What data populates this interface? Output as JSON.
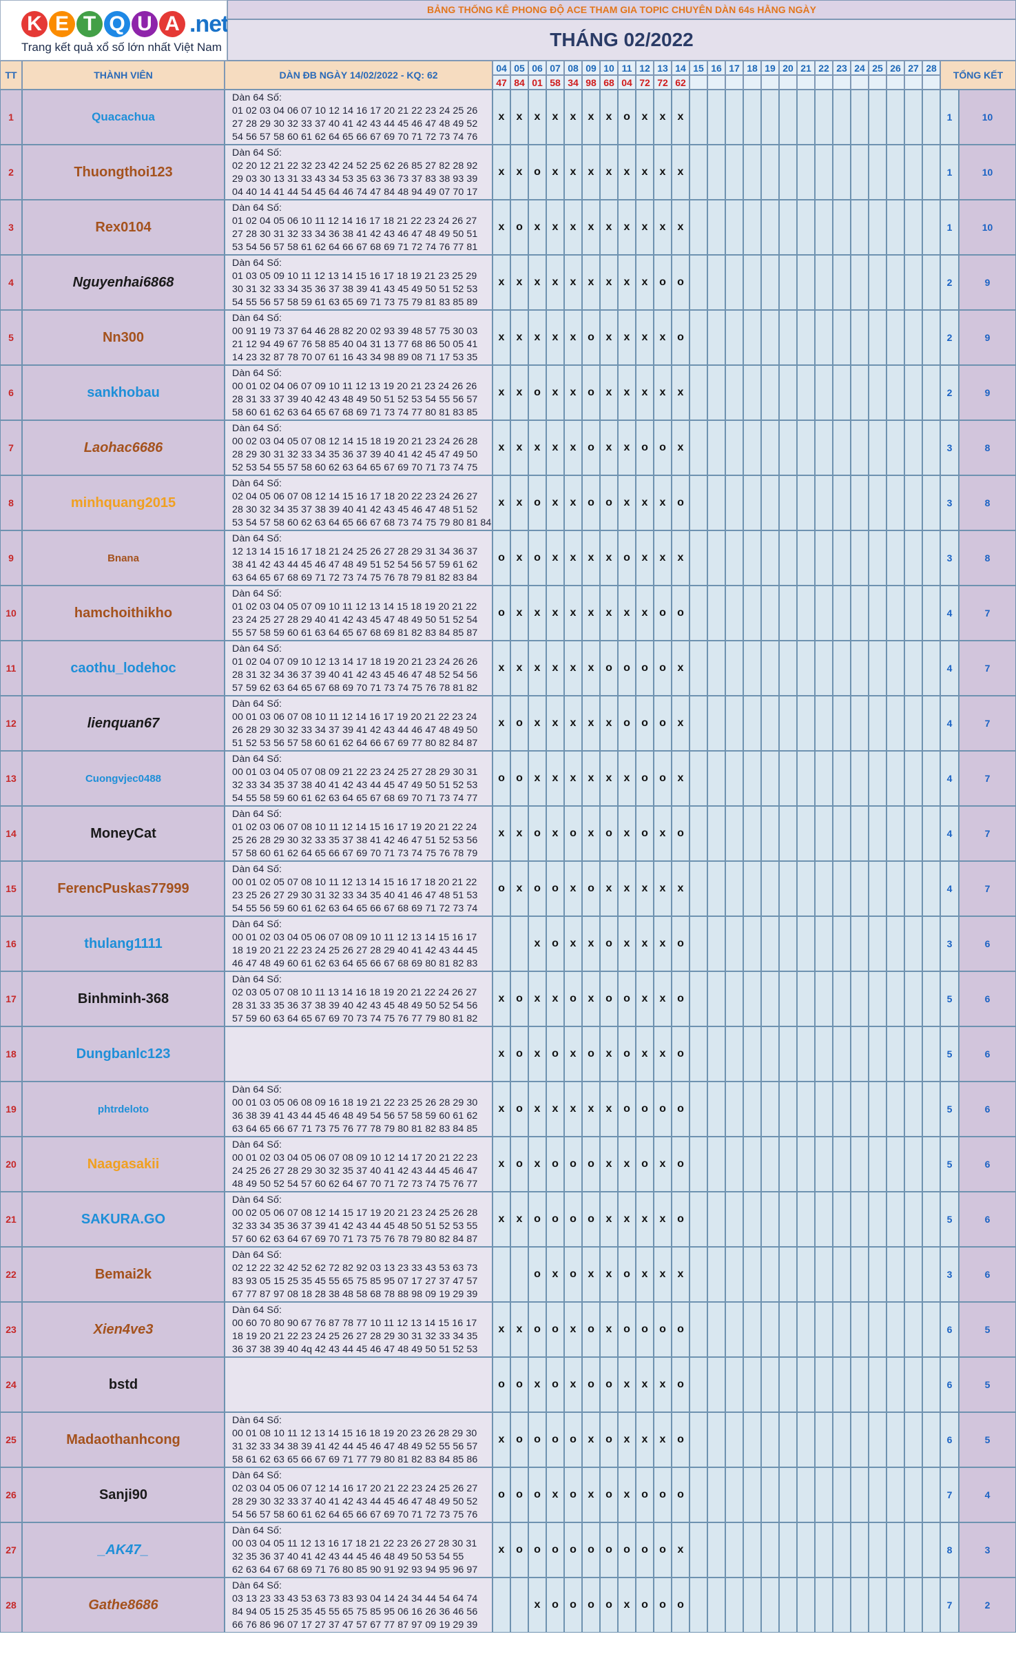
{
  "logo": {
    "letters": [
      "K",
      "E",
      "T",
      "Q",
      "U",
      "A"
    ],
    "suffix": ".net",
    "tagline": "Trang kết quả xổ số lớn nhất Việt Nam"
  },
  "banner": "BẢNG THỐNG KÊ PHONG ĐỘ ACE THAM GIA TOPIC CHUYÊN DÀN 64s HẰNG NGÀY",
  "month": "THÁNG 02/2022",
  "headers": {
    "tt": "TT",
    "member": "THÀNH VIÊN",
    "dan": "DÀN ĐB NGÀY 14/02/2022 - KQ: 62",
    "total": "TỔNG KẾT"
  },
  "days": [
    "04",
    "05",
    "06",
    "07",
    "08",
    "09",
    "10",
    "11",
    "12",
    "13",
    "14",
    "15",
    "16",
    "17",
    "18",
    "19",
    "20",
    "21",
    "22",
    "23",
    "24",
    "25",
    "26",
    "27",
    "28"
  ],
  "results": [
    "47",
    "84",
    "01",
    "58",
    "34",
    "98",
    "68",
    "04",
    "72",
    "72",
    "62"
  ],
  "dan_title": "Dàn 64 Số:",
  "rows": [
    {
      "tt": "1",
      "name": "Quacachua",
      "color": "#1e8fd8",
      "style": "normal",
      "size": 17,
      "dan": [
        "01 02 03 04 06 07 10 12 14 16 17 20 21 22 23 24 25 26",
        "27 28 29 30 32 33 37 40 41 42 43 44 45 46 47 48 49 52",
        "54 56 57 58 60 61 62 64 65 66 67 69 70 71 72 73 74 76",
        "77 78 79 82 84 85 87 94 96 97"
      ],
      "marks": [
        "x",
        "x",
        "x",
        "x",
        "x",
        "x",
        "x",
        "o",
        "x",
        "x",
        "x"
      ],
      "a": "1",
      "b": "10"
    },
    {
      "tt": "2",
      "name": "Thuongthoi123",
      "color": "#a4521d",
      "style": "normal",
      "size": 20,
      "dan": [
        "02 20 12 21 22 32 23 42 24 52 25 62 26 85 27 82 28 92",
        "29 03 30 13 31 33 43 34 53 35 63 36 73 37 83 38 93 39",
        "04 40 14 41 44 54 45 64 46 74 47 84 48 94 49 07 70 17",
        "71 57 75 67 76 77 87 78 97 79"
      ],
      "marks": [
        "x",
        "x",
        "o",
        "x",
        "x",
        "x",
        "x",
        "x",
        "x",
        "x",
        "x"
      ],
      "a": "1",
      "b": "10"
    },
    {
      "tt": "3",
      "name": "Rex0104",
      "color": "#a4521d",
      "style": "normal",
      "size": 20,
      "dan": [
        "01 02 04 05 06 10 11 12 14 16 17 18 21 22 23 24 26 27",
        "27 28 30 31 32 33 34 36 38 41 42 43 46 47 48 49 50 51",
        "53 54 56 57 58 61 62 64 66 67 68 69 71 72 74 76 77 81",
        "82 83 85 86 88 89 91 94 96 98"
      ],
      "marks": [
        "x",
        "o",
        "x",
        "x",
        "x",
        "x",
        "x",
        "x",
        "x",
        "x",
        "x"
      ],
      "a": "1",
      "b": "10"
    },
    {
      "tt": "4",
      "name": "Nguyenhai6868",
      "color": "#1a1a1a",
      "style": "italic",
      "size": 20,
      "dan": [
        "01 03 05 09 10 11 12 13 14 15 16 17 18 19 21 23 25 29",
        "30 31 32 33 34 35 36 37 38 39 41 43 45 49 50 51 52 53",
        "54 55 56 57 58 59 61 63 65 69 71 73 75 79 81 83 85 89",
        "90 91 93 94 95 96 97 98 99"
      ],
      "marks": [
        "x",
        "x",
        "x",
        "x",
        "x",
        "x",
        "x",
        "x",
        "x",
        "o",
        "o"
      ],
      "a": "2",
      "b": "9"
    },
    {
      "tt": "5",
      "name": "Nn300",
      "color": "#a4521d",
      "style": "normal",
      "size": 20,
      "dan": [
        "00 91 19 73 37 64 46 28 82 20 02 93 39 48 57 75 30 03",
        "21 12 94 49 67 76 58 85 40 04 31 13 77 68 86 50 05 41",
        "14 23 32 87 78 70 07 61 16 43 34 98 89 08 71 17 53 35",
        "44 22 96 63 26 54 45 27 72"
      ],
      "marks": [
        "x",
        "x",
        "x",
        "x",
        "x",
        "o",
        "x",
        "x",
        "x",
        "x",
        "o"
      ],
      "a": "2",
      "b": "9"
    },
    {
      "tt": "6",
      "name": "sankhobau",
      "color": "#1e8fd8",
      "style": "normal",
      "size": 20,
      "dan": [
        "00 01 02 04 06 07 09 10 11 12 13 19 20 21 23 24 26 26",
        "28 31 33 37 39 40 42 43 48 49 50 51 52 53 54 55 56 57",
        "58 60 61 62 63 64 65 67 68 69 71 73 74 77 80 81 83 85",
        "86 87 89 90 92 93 95 96 99"
      ],
      "marks": [
        "x",
        "x",
        "o",
        "x",
        "x",
        "o",
        "x",
        "x",
        "x",
        "x",
        "x"
      ],
      "a": "2",
      "b": "9"
    },
    {
      "tt": "7",
      "name": "Laohac6686",
      "color": "#a4521d",
      "style": "italic",
      "size": 20,
      "dan": [
        "00 02 03 04 05 07 08 12 14 15 18 19 20 21 23 24 26 28",
        "28 29 30 31 32 33 34 35 36 37 39 40 41 42 45 47 49 50",
        "52 53 54 55 57 58 60 62 63 64 65 67 69 70 71 73 74 75",
        "76 78 79 81 83 85 86 87 90 94"
      ],
      "marks": [
        "x",
        "x",
        "x",
        "x",
        "x",
        "o",
        "x",
        "x",
        "o",
        "o",
        "x"
      ],
      "a": "3",
      "b": "8"
    },
    {
      "tt": "8",
      "name": "minhquang2015",
      "color": "#f0a020",
      "style": "normal",
      "size": 20,
      "dan": [
        "02 04 05 06 07 08 12 14 15 16 17 18 20 22 23 24 26 27",
        "28 30 32 34 35 37 38 39 40 41 42 43 45 46 47 48 51 52",
        "53 54 57 58 60 62 63 64 65 66 67 68 73 74 75 79 80 81 84",
        "85 86 87 88 89 93 94 95 97 99"
      ],
      "marks": [
        "x",
        "x",
        "o",
        "x",
        "x",
        "o",
        "o",
        "x",
        "x",
        "x",
        "o"
      ],
      "a": "3",
      "b": "8"
    },
    {
      "tt": "9",
      "name": "Bnana",
      "color": "#a4521d",
      "style": "normal",
      "size": 15,
      "dan": [
        "12 13 14 15 16 17 18 21 24 25 26 27 28 29 31 34 36 37",
        "38 41 42 43 44 45 46 47 48 49 51 52 54 56 57 59 61 62",
        "63 64 65 67 68 69 71 72 73 74 75 76 78 79 81 82 83 84",
        "86 87 88 89 92 93 94 95 96 97 98"
      ],
      "marks": [
        "o",
        "x",
        "o",
        "x",
        "x",
        "x",
        "x",
        "o",
        "x",
        "x",
        "x"
      ],
      "a": "3",
      "b": "8"
    },
    {
      "tt": "10",
      "name": "hamchoithikho",
      "color": "#a4521d",
      "style": "normal",
      "size": 20,
      "dan": [
        "01 02 03 04 05 07 09 10 11 12 13 14 15 18 19 20 21 22",
        "23 24 25 27 28 29 40 41 42 43 45 47 48 49 50 51 52 54",
        "55 57 58 59 60 61 63 64 65 67 68 69 81 82 83 84 85 87",
        "88 89 91 92 93 94 95 96 97 98"
      ],
      "marks": [
        "o",
        "x",
        "x",
        "x",
        "x",
        "x",
        "x",
        "x",
        "x",
        "o",
        "o"
      ],
      "a": "4",
      "b": "7"
    },
    {
      "tt": "11",
      "name": "caothu_lodehoc",
      "color": "#1e8fd8",
      "style": "normal",
      "size": 20,
      "dan": [
        "01 02 04 07 09 10 12 13 14 17 18 19 20 21 23 24 26 26",
        "28 31 32 34 36 37 39 40 41 42 43 45 46 47 48 52 54 56",
        "57 59 62 63 64 65 67 68 69 70 71 73 74 75 76 78 81 82",
        "84 86 87 89 90 91 92 93 94 95 96 98"
      ],
      "marks": [
        "x",
        "x",
        "x",
        "x",
        "x",
        "x",
        "o",
        "o",
        "o",
        "o",
        "x"
      ],
      "a": "4",
      "b": "7"
    },
    {
      "tt": "12",
      "name": "lienquan67",
      "color": "#1a1a1a",
      "style": "italic",
      "size": 20,
      "dan": [
        "00 01 03 06 07 08 10 11 12 14 16 17 19 20 21 22 23 24",
        "26 28 29 30 32 33 34 37 39 41 42 43 44 46 47 48 49 50",
        "51 52 53 56 57 58 60 61 62 64 66 67 69 77 80 82 84 87",
        "88 89 91 92 93 94 95 96 97 99"
      ],
      "marks": [
        "x",
        "o",
        "x",
        "x",
        "x",
        "x",
        "x",
        "o",
        "o",
        "o",
        "x"
      ],
      "a": "4",
      "b": "7"
    },
    {
      "tt": "13",
      "name": "Cuongvjec0488",
      "color": "#1e8fd8",
      "style": "normal",
      "size": 15,
      "dan": [
        "00 01 03 04 05 07 08 09 21 22 23 24 25 27 28 29 30 31",
        "32 33 34 35 37 38 40 41 42 43 44 45 47 49 50 51 52 53",
        "54 55 58 59 60 61 62 63 64 65 67 68 69 70 71 73 74 77",
        "78 79 82 84 85 90 92 94 95 97 99"
      ],
      "marks": [
        "o",
        "o",
        "x",
        "x",
        "x",
        "x",
        "x",
        "x",
        "o",
        "o",
        "x"
      ],
      "a": "4",
      "b": "7"
    },
    {
      "tt": "14",
      "name": "MoneyCat",
      "color": "#1a1a1a",
      "style": "normal",
      "size": 20,
      "dan": [
        "01 02 03 06 07 08 10 11 12 14 15 16 17 19 20 21 22 24",
        "25 26 28 29 30 32 33 35 37 38 41 42 46 47 51 52 53 56",
        "57 58 60 61 62 64 65 66 67 69 70 71 73 74 75 76 78 79",
        "82 83 84 87 89 91 92 93 94 98"
      ],
      "marks": [
        "x",
        "x",
        "o",
        "x",
        "o",
        "x",
        "o",
        "x",
        "o",
        "x",
        "o"
      ],
      "a": "4",
      "b": "7"
    },
    {
      "tt": "15",
      "name": "FerencPuskas77999",
      "color": "#a4521d",
      "style": "normal",
      "size": 20,
      "dan": [
        "00 01 02 05 07 08 10 11 12 13 14 15 16 17 18 20 21 22",
        "23 25 26 27 29 30 31 32 33 34 35 40 41 46 47 48 51 53",
        "54 55 56 59 60 61 62 63 64 65 66 67 68 69 71 72 73 74",
        "80 83 85 86 87 88 89 90 91 92 93 94 95 96"
      ],
      "marks": [
        "o",
        "x",
        "o",
        "o",
        "x",
        "o",
        "x",
        "x",
        "x",
        "x",
        "x"
      ],
      "a": "4",
      "b": "7"
    },
    {
      "tt": "16",
      "name": "thulang1111",
      "color": "#1e8fd8",
      "style": "normal",
      "size": 20,
      "dan": [
        "00 01 02 03 04 05 06 07 08 09 10 11 12 13 14 15 16 17",
        "18 19 20 21 22 23 24 25 26 27 28 29 40 41 42 43 44 45",
        "46 47 48 49 60 61 62 63 64 65 66 67 68 69 80 81 82 83",
        "84 85 86 87 88 89 90 91 92 93 94 95 96 97 98 99"
      ],
      "marks": [
        "",
        "",
        "x",
        "o",
        "x",
        "x",
        "o",
        "x",
        "x",
        "x",
        "o"
      ],
      "a": "3",
      "b": "6"
    },
    {
      "tt": "17",
      "name": "Binhminh-368",
      "color": "#1a1a1a",
      "style": "normal",
      "size": 20,
      "dan": [
        "02 03 05 07 08 10 11 13 14 16 18 19 20 21 22 24 26 27",
        "28 31 33 35 36 37 38 39 40 42 43 45 48 49 50 52 54 56",
        "57 59 60 63 64 65 67 69 70 73 74 75 76 77 79 80 81 82",
        "85 86 88 89 90 91 92 93 96 97 98 99"
      ],
      "marks": [
        "x",
        "o",
        "x",
        "x",
        "o",
        "x",
        "o",
        "o",
        "x",
        "x",
        "o"
      ],
      "a": "5",
      "b": "6"
    },
    {
      "tt": "18",
      "name": "Dungbanlc123",
      "color": "#1e8fd8",
      "style": "normal",
      "size": 20,
      "dan": [],
      "marks": [
        "x",
        "o",
        "x",
        "o",
        "x",
        "o",
        "x",
        "o",
        "x",
        "x",
        "o"
      ],
      "a": "5",
      "b": "6"
    },
    {
      "tt": "19",
      "name": "phtrdeloto",
      "color": "#1e8fd8",
      "style": "normal",
      "size": 15,
      "dan": [
        "00 01 03 05 06 08 09 16 18 19 21 22 23 25 26 28 29 30",
        "36 38 39 41 43 44 45 46 48 49 54 56 57 58 59 60 61 62",
        "63 64 65 66 67 71 73 75 76 77 78 79 80 81 82 83 84 85",
        "87 89 90 91 92 94 95 96 97 98 99"
      ],
      "marks": [
        "x",
        "o",
        "x",
        "x",
        "x",
        "x",
        "x",
        "o",
        "o",
        "o",
        "o"
      ],
      "a": "5",
      "b": "6"
    },
    {
      "tt": "20",
      "name": "Naagasakii",
      "color": "#f0a020",
      "style": "normal",
      "size": 20,
      "dan": [
        "00 01 02 03 04 05 06 07 08 09 10 12 14 17 20 21 22 23",
        "24 25 26 27 28 29 30 32 35 37 40 41 42 43 44 45 46 47",
        "48 49 50 52 54 57 60 62 64 67 70 71 72 73 74 75 76 77",
        "78 79 80 82 84 86 87 90 92 94 95 97"
      ],
      "marks": [
        "x",
        "o",
        "x",
        "o",
        "o",
        "o",
        "x",
        "x",
        "o",
        "x",
        "o"
      ],
      "a": "5",
      "b": "6"
    },
    {
      "tt": "21",
      "name": "SAKURA.GO",
      "color": "#1e8fd8",
      "style": "normal",
      "size": 20,
      "dan": [
        "00 02 05 06 07 08 12 14 15 17 19 20 21 23 24 25 26 28",
        "32 33 34 35 36 37 39 41 42 43 44 45 48 50 51 52 53 55",
        "57 60 62 63 64 67 69 70 71 73 75 76 78 79 80 82 84 87",
        "88 89 90 91 93 95 96 97 98 99"
      ],
      "marks": [
        "x",
        "x",
        "o",
        "o",
        "o",
        "o",
        "x",
        "x",
        "x",
        "x",
        "o"
      ],
      "a": "5",
      "b": "6"
    },
    {
      "tt": "22",
      "name": "Bemai2k",
      "color": "#a4521d",
      "style": "normal",
      "size": 20,
      "dan": [
        "02 12 22 32 42 52 62 72 82 92 03 13 23 33 43 53 63 73",
        "83 93 05 15 25 35 45 55 65 75 85 95 07 17 27 37 47 57",
        "67 77 87 97 08 18 28 38 48 58 68 78 88 98 09 19 29 39",
        "49 59 69 79 89 99 06 16 26 36"
      ],
      "marks": [
        "",
        "",
        "o",
        "x",
        "o",
        "x",
        "x",
        "o",
        "x",
        "x",
        "x"
      ],
      "a": "3",
      "b": "6"
    },
    {
      "tt": "23",
      "name": "Xien4ve3",
      "color": "#a4521d",
      "style": "italic",
      "size": 20,
      "dan": [
        "00 60 70 80 90 67 76 87 78 77 10 11 12 13 14 15 16 17",
        "18 19 20 21 22 23 24 25 26 27 28 29 30 31 32 33 34 35",
        "36 37 38 39 40 4q 42 43 44 45 46 47 48 49 50 51 52 53",
        "54 55 56 57 58 59 84 94 74 64"
      ],
      "marks": [
        "x",
        "x",
        "o",
        "o",
        "x",
        "o",
        "x",
        "o",
        "o",
        "o",
        "o"
      ],
      "a": "6",
      "b": "5"
    },
    {
      "tt": "24",
      "name": "bstd",
      "color": "#1a1a1a",
      "style": "normal",
      "size": 20,
      "dan": [],
      "marks": [
        "o",
        "o",
        "x",
        "o",
        "x",
        "o",
        "o",
        "x",
        "x",
        "x",
        "o"
      ],
      "a": "6",
      "b": "5"
    },
    {
      "tt": "25",
      "name": "Madaothanhcong",
      "color": "#a4521d",
      "style": "normal",
      "size": 20,
      "dan": [
        "00 01 08 10 11 12 13 14 15 16 18 19 20 23 26 28 29 30",
        "31 32 33 34 38 39 41 42 44 45 46 47 48 49 52 55 56 57",
        "58 61 62 63 65 66 67 69 71 77 79 80 81 82 83 84 85 86",
        "88 89 90 91 92 93 94 95 96 97"
      ],
      "marks": [
        "x",
        "o",
        "o",
        "o",
        "o",
        "x",
        "o",
        "x",
        "x",
        "x",
        "o"
      ],
      "a": "6",
      "b": "5"
    },
    {
      "tt": "26",
      "name": "Sanji90",
      "color": "#1a1a1a",
      "style": "normal",
      "size": 20,
      "dan": [
        "02 03 04 05 06 07 12 14 16 17 20 21 22 23 24 25 26 27",
        "28 29 30 32 33 37 40 41 42 43 44 45 46 47 48 49 50 52",
        "54 56 57 58 60 61 62 64 65 66 67 69 70 71 72 73 75 76",
        "77 78 79 82 84 85 87 94 96 97"
      ],
      "marks": [
        "o",
        "o",
        "o",
        "x",
        "o",
        "x",
        "o",
        "x",
        "o",
        "o",
        "o"
      ],
      "a": "7",
      "b": "4"
    },
    {
      "tt": "27",
      "name": "_AK47_",
      "color": "#1e8fd8",
      "style": "italic",
      "size": 20,
      "dan": [
        "00 03 04 05 11 12 13 16 17 18 21 22 23 26 27 28 30 31",
        "32 35 36 37 40 41 42 43 44 45 46 48 49 50 53 54 55",
        "62 63 64 67 68 69 71 76 80 85 90 91 92 93 94 95 96 97",
        "98 99"
      ],
      "marks": [
        "x",
        "o",
        "o",
        "o",
        "o",
        "o",
        "o",
        "o",
        "o",
        "o",
        "x"
      ],
      "a": "8",
      "b": "3"
    },
    {
      "tt": "28",
      "name": "Gathe8686",
      "color": "#a4521d",
      "style": "italic",
      "size": 20,
      "dan": [
        "03 13 23 33 43 53 63 73 83 93 04 14 24 34 44 54 64 74",
        "84 94 05 15 25 35 45 55 65 75 85 95 06 16 26 36 46 56",
        "66 76 86 96 07 17 27 37 47 57 67 77 87 97 09 19 29 39",
        "49 59 69 79 89 99 08 18 28 38"
      ],
      "marks": [
        "",
        "",
        "x",
        "o",
        "o",
        "o",
        "o",
        "x",
        "o",
        "o",
        "o"
      ],
      "a": "7",
      "b": "2"
    }
  ]
}
